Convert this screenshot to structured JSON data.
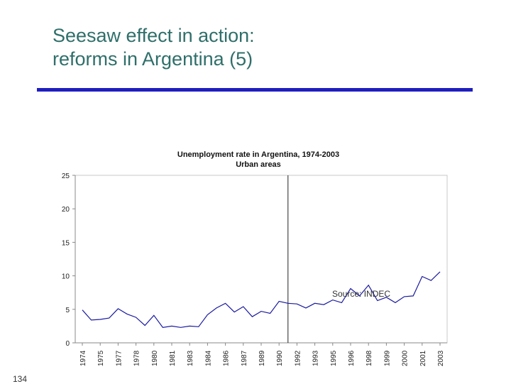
{
  "slide": {
    "title_line1": "Seesaw effect in action:",
    "title_line2": "reforms in Argentina (5)",
    "page_number": "134",
    "colors": {
      "title": "#2f6f6a",
      "rule": "#1f1fbf",
      "series": "#1a1aa0"
    }
  },
  "chart_data": {
    "type": "line",
    "title": "Unemployment rate in Argentina, 1974-2003",
    "subtitle": "Urban areas",
    "xlabel": "",
    "ylabel": "",
    "ylim": [
      0,
      25
    ],
    "yticks": [
      0,
      5,
      10,
      15,
      20,
      25
    ],
    "x_tick_labels": [
      "1974",
      "1975",
      "1977",
      "1978",
      "1980",
      "1981",
      "1983",
      "1984",
      "1986",
      "1987",
      "1989",
      "1990",
      "1992",
      "1993",
      "1995",
      "1996",
      "1998",
      "1999",
      "2000",
      "2001",
      "2003"
    ],
    "grid": false,
    "legend": "none",
    "annotation": "Source: INDEC",
    "vertical_marker_x": 11.5,
    "series": [
      {
        "x": [
          0,
          0.5,
          1,
          1.5,
          2,
          2.5,
          3,
          3.5,
          4,
          4.5,
          5,
          5.5,
          6,
          6.5,
          7,
          7.5,
          8,
          8.5,
          9,
          9.5,
          10,
          10.5,
          11,
          11.5,
          12,
          12.5,
          13,
          13.5,
          14,
          14.5,
          15,
          15.5,
          16,
          16.5,
          17,
          17.5,
          18,
          18.5,
          19,
          19.5,
          20
        ],
        "values": [
          4.9,
          3.4,
          3.5,
          3.7,
          5.1,
          4.3,
          3.8,
          2.6,
          4.1,
          2.3,
          2.5,
          2.3,
          2.5,
          2.4,
          4.2,
          5.2,
          5.9,
          4.6,
          5.4,
          3.9,
          4.7,
          4.4,
          6.2,
          5.9,
          5.8,
          5.2,
          5.9,
          5.7,
          6.4,
          6.0,
          8.1,
          7.0,
          8.6,
          6.3,
          6.8,
          6.0,
          6.9,
          7.0,
          9.9,
          9.3,
          10.6
        ]
      }
    ]
  }
}
